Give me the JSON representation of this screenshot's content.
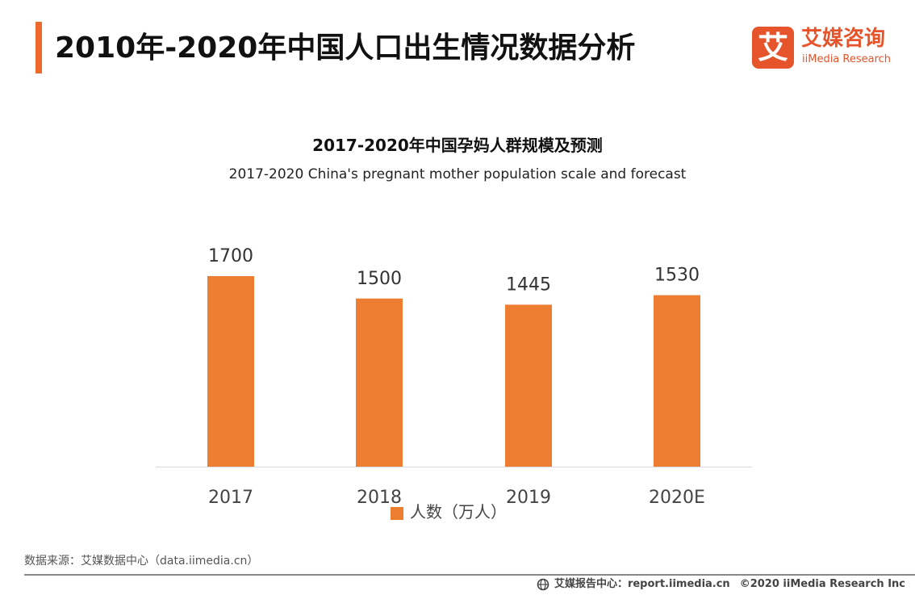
{
  "header": {
    "title": "2010年-2020年中国人口出生情况数据分析",
    "accent_color": "#ee6a2c"
  },
  "logo": {
    "mark": "艾",
    "name_cn": "艾媒咨询",
    "name_en": "iiMedia Research",
    "color": "#e5542b"
  },
  "chart_data": {
    "type": "bar",
    "title": "2017-2020年中国孕妈人群规模及预测",
    "subtitle": "2017-2020 China's pregnant mother population scale and forecast",
    "categories": [
      "2017",
      "2018",
      "2019",
      "2020E"
    ],
    "series": [
      {
        "name": "人数（万人）",
        "values": [
          1700,
          1500,
          1445,
          1530
        ],
        "color": "#ed7d31"
      }
    ],
    "data_labels": [
      "1700",
      "1500",
      "1445",
      "1530"
    ],
    "ylim": [
      0,
      2000
    ],
    "xlabel": "",
    "ylabel": "",
    "grid": false,
    "legend": "bottom-center"
  },
  "source": "数据来源：艾媒数据中心（data.iimedia.cn）",
  "footer": {
    "icon": "globe-icon",
    "report_site": "艾媒报告中心：report.iimedia.cn",
    "copyright": "©2020  iiMedia Research  Inc"
  }
}
